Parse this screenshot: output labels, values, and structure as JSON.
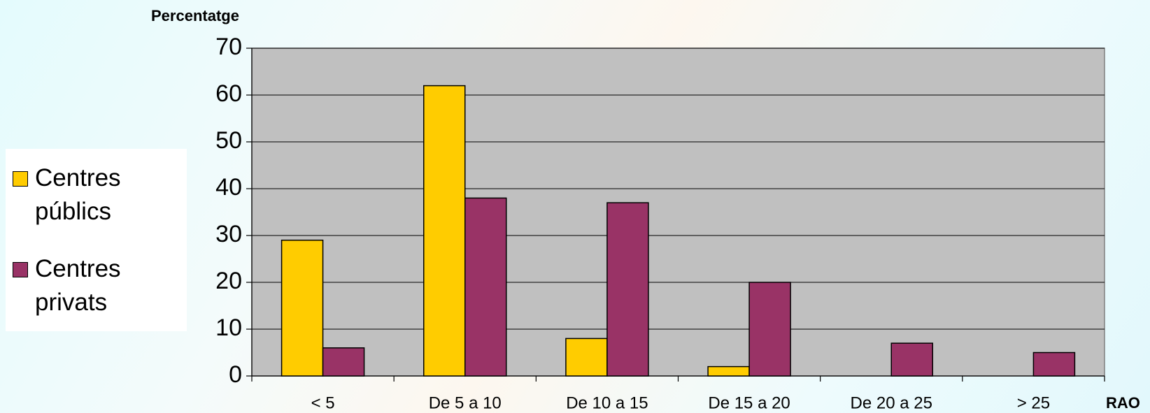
{
  "chart_data": {
    "type": "bar",
    "y_label": "Percentatge",
    "x_label": "RAO",
    "categories": [
      "< 5",
      "De 5 a 10",
      "De 10 a 15",
      "De 15 a 20",
      "De 20 a 25",
      "> 25"
    ],
    "series": [
      {
        "name": "Centres públics",
        "color": "#ffcc00",
        "values": [
          29,
          62,
          8,
          2,
          0,
          0
        ]
      },
      {
        "name": "Centres privats",
        "color": "#993366",
        "values": [
          6,
          38,
          37,
          20,
          7,
          5
        ]
      }
    ],
    "ylim": [
      0,
      70
    ],
    "yticks": [
      0,
      10,
      20,
      30,
      40,
      50,
      60,
      70
    ],
    "grid": true,
    "legend": "left"
  }
}
